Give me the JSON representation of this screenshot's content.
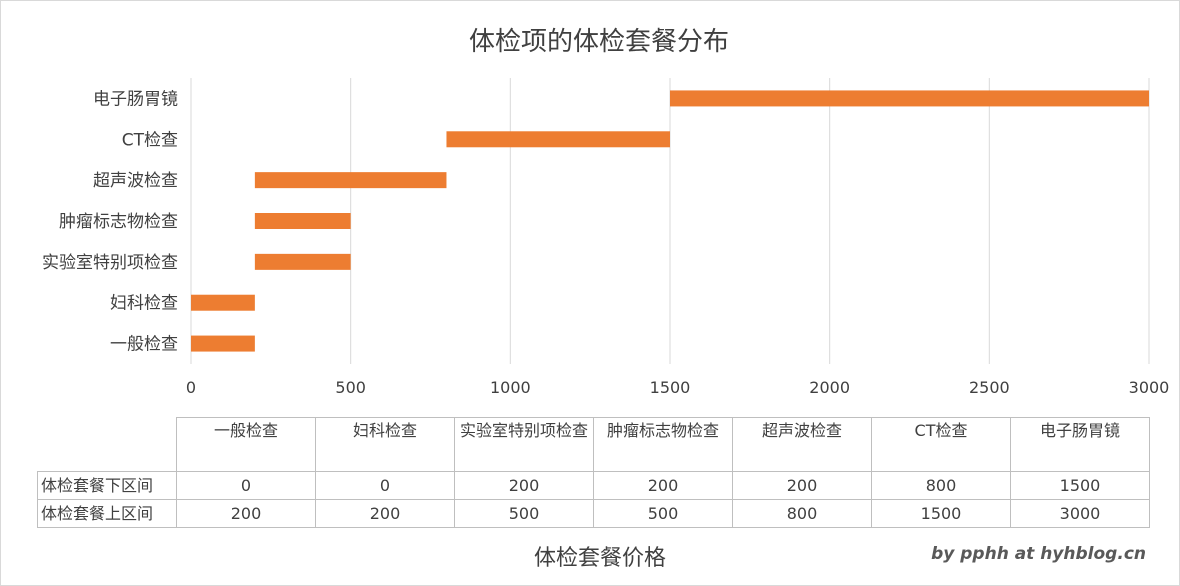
{
  "chart_data": {
    "type": "bar",
    "orientation": "horizontal",
    "stacked_floating": true,
    "title": "体检项的体检套餐分布",
    "xlabel": "体检套餐价格",
    "categories": [
      "一般检查",
      "妇科检查",
      "实验室特别项检查",
      "肿瘤标志物检查",
      "超声波检查",
      "CT检查",
      "电子肠胃镜"
    ],
    "series": [
      {
        "name": "体检套餐下区间",
        "values": [
          0,
          0,
          200,
          200,
          200,
          800,
          1500
        ]
      },
      {
        "name": "体检套餐上区间",
        "values": [
          200,
          200,
          500,
          500,
          800,
          1500,
          3000
        ]
      }
    ],
    "xlim": [
      0,
      3000
    ],
    "xticks": [
      0,
      500,
      1000,
      1500,
      2000,
      2500,
      3000
    ],
    "grid": true,
    "bar_color": "#ED7D31",
    "data_table": {
      "headers": [
        "一般检查",
        "妇科检查",
        "实验室特别项检查",
        "肿瘤标志物检查",
        "超声波检查",
        "CT检查",
        "电子肠胃镜"
      ],
      "rows": [
        {
          "label": "体检套餐下区间",
          "values": [
            "0",
            "0",
            "200",
            "200",
            "200",
            "800",
            "1500"
          ]
        },
        {
          "label": "体检套餐上区间",
          "values": [
            "200",
            "200",
            "500",
            "500",
            "800",
            "1500",
            "3000"
          ]
        }
      ]
    }
  },
  "credit": "by pphh at hyhblog.cn"
}
